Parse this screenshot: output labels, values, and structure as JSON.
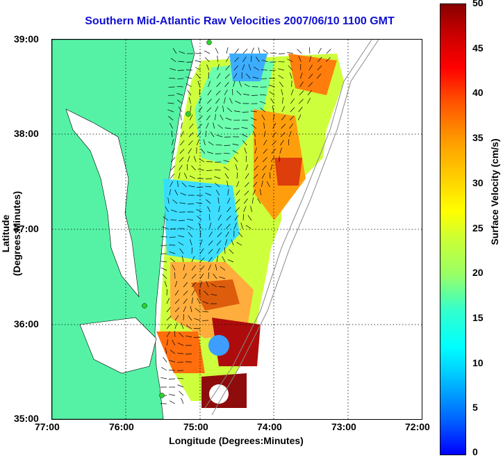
{
  "title": "Southern Mid-Atlantic Raw Velocities 2007/06/10 1100 GMT",
  "x_axis": {
    "label": "Longitude (Degrees:Minutes)",
    "ticks": [
      "77:00",
      "76:00",
      "75:00",
      "74:00",
      "73:00",
      "72:00"
    ]
  },
  "y_axis": {
    "label": "Latitude (Degrees:Minutes)",
    "ticks": [
      "39:00",
      "38:00",
      "37:00",
      "36:00",
      "35:00"
    ]
  },
  "colorbar": {
    "label": "Surface Velocity (cm/s)",
    "ticks": [
      "50",
      "45",
      "40",
      "35",
      "30",
      "25",
      "20",
      "15",
      "10",
      "5",
      "0"
    ],
    "range": [
      0,
      50
    ],
    "colormap": "jet"
  },
  "map": {
    "lon_range": [
      -77,
      -72
    ],
    "lat_range": [
      35,
      39
    ],
    "land_color": "#55f2a6",
    "station_markers": [
      "green-dot"
    ]
  }
}
